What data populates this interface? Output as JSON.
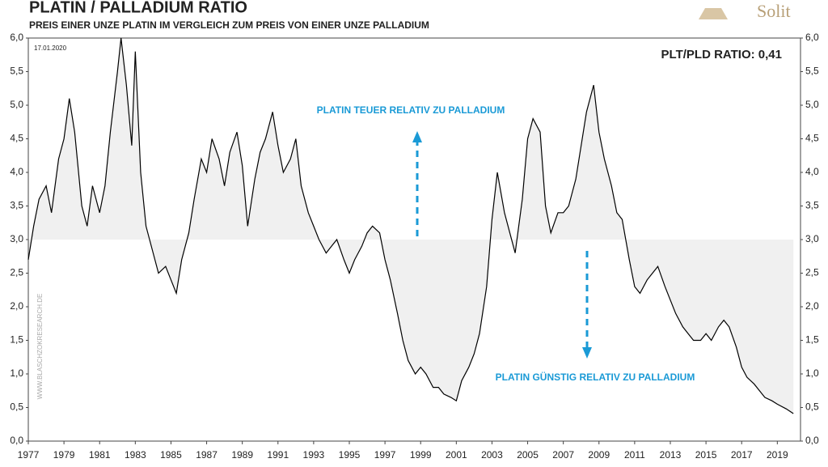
{
  "chart_data": {
    "type": "line",
    "title": "PLATIN / PALLADIUM RATIO",
    "subtitle": "PREIS EINER UNZE  PLATIN IM VERGLEICH ZUM PREIS VON EINER UNZE PALLADIUM",
    "date": "17.01.2020",
    "ratio_label": "PLT/PLD RATIO: 0,41",
    "annotation_up": "PLATIN TEUER RELATIV ZU PALLADIUM",
    "annotation_down": "PLATIN GÜNSTIG RELATIV ZU PALLADIUM",
    "watermark": "WWW.BLASCHZOKRESEARCH.DE",
    "logo": "Solit",
    "color": "#000000",
    "fill_color": "#f0f0f0",
    "fill_baseline": 3,
    "xlim": [
      1977,
      2020.3
    ],
    "xticks": [
      1977,
      1979,
      1981,
      1983,
      1985,
      1987,
      1989,
      1991,
      1993,
      1995,
      1997,
      1999,
      2001,
      2003,
      2005,
      2007,
      2009,
      2011,
      2013,
      2015,
      2017,
      2019
    ],
    "ylim": [
      0,
      6
    ],
    "yticks": [
      {
        "value": 0,
        "label": "0,0"
      },
      {
        "value": 0.5,
        "label": "0,5"
      },
      {
        "value": 1,
        "label": "1,0"
      },
      {
        "value": 1.5,
        "label": "1,5"
      },
      {
        "value": 2,
        "label": "2,0"
      },
      {
        "value": 2.5,
        "label": "2,5"
      },
      {
        "value": 3,
        "label": "3,0"
      },
      {
        "value": 3.5,
        "label": "3,5"
      },
      {
        "value": 4,
        "label": "4,0"
      },
      {
        "value": 4.5,
        "label": "4,5"
      },
      {
        "value": 5,
        "label": "5,0"
      },
      {
        "value": 5.5,
        "label": "5,5"
      },
      {
        "value": 6,
        "label": "6,0"
      }
    ],
    "x": [
      1977.0,
      1977.3,
      1977.6,
      1978.0,
      1978.3,
      1978.7,
      1979.0,
      1979.3,
      1979.6,
      1980.0,
      1980.3,
      1980.6,
      1981.0,
      1981.3,
      1981.6,
      1982.0,
      1982.2,
      1982.5,
      1982.8,
      1983.0,
      1983.3,
      1983.6,
      1984.0,
      1984.3,
      1984.7,
      1985.0,
      1985.3,
      1985.6,
      1986.0,
      1986.3,
      1986.7,
      1987.0,
      1987.3,
      1987.7,
      1988.0,
      1988.3,
      1988.7,
      1989.0,
      1989.3,
      1989.7,
      1990.0,
      1990.3,
      1990.7,
      1991.0,
      1991.3,
      1991.7,
      1992.0,
      1992.3,
      1992.7,
      1993.0,
      1993.3,
      1993.7,
      1994.0,
      1994.3,
      1994.7,
      1995.0,
      1995.3,
      1995.7,
      1996.0,
      1996.3,
      1996.7,
      1997.0,
      1997.3,
      1997.7,
      1998.0,
      1998.3,
      1998.7,
      1999.0,
      1999.3,
      1999.7,
      2000.0,
      2000.3,
      2000.7,
      2001.0,
      2001.3,
      2001.7,
      2002.0,
      2002.3,
      2002.7,
      2003.0,
      2003.3,
      2003.7,
      2004.0,
      2004.3,
      2004.7,
      2005.0,
      2005.3,
      2005.7,
      2006.0,
      2006.3,
      2006.7,
      2007.0,
      2007.3,
      2007.7,
      2008.0,
      2008.3,
      2008.7,
      2009.0,
      2009.3,
      2009.7,
      2010.0,
      2010.3,
      2010.7,
      2011.0,
      2011.3,
      2011.7,
      2012.0,
      2012.3,
      2012.7,
      2013.0,
      2013.3,
      2013.7,
      2014.0,
      2014.3,
      2014.7,
      2015.0,
      2015.3,
      2015.7,
      2016.0,
      2016.3,
      2016.7,
      2017.0,
      2017.3,
      2017.7,
      2018.0,
      2018.3,
      2018.7,
      2019.0,
      2019.5,
      2019.9
    ],
    "values": [
      2.7,
      3.2,
      3.6,
      3.8,
      3.4,
      4.2,
      4.5,
      5.1,
      4.6,
      3.5,
      3.2,
      3.8,
      3.4,
      3.8,
      4.6,
      5.5,
      6.0,
      5.3,
      4.4,
      5.8,
      4.0,
      3.2,
      2.8,
      2.5,
      2.6,
      2.4,
      2.2,
      2.7,
      3.1,
      3.6,
      4.2,
      4.0,
      4.5,
      4.2,
      3.8,
      4.3,
      4.6,
      4.1,
      3.2,
      3.9,
      4.3,
      4.5,
      4.9,
      4.4,
      4.0,
      4.2,
      4.5,
      3.8,
      3.4,
      3.2,
      3.0,
      2.8,
      2.9,
      3.0,
      2.7,
      2.5,
      2.7,
      2.9,
      3.1,
      3.2,
      3.1,
      2.7,
      2.4,
      1.9,
      1.5,
      1.2,
      1.0,
      1.1,
      1.0,
      0.8,
      0.8,
      0.7,
      0.65,
      0.6,
      0.9,
      1.1,
      1.3,
      1.6,
      2.3,
      3.3,
      4.0,
      3.4,
      3.1,
      2.8,
      3.6,
      4.5,
      4.8,
      4.6,
      3.5,
      3.1,
      3.4,
      3.4,
      3.5,
      3.9,
      4.4,
      4.9,
      5.3,
      4.6,
      4.2,
      3.8,
      3.4,
      3.3,
      2.7,
      2.3,
      2.2,
      2.4,
      2.5,
      2.6,
      2.3,
      2.1,
      1.9,
      1.7,
      1.6,
      1.5,
      1.5,
      1.6,
      1.5,
      1.7,
      1.8,
      1.7,
      1.4,
      1.1,
      0.95,
      0.85,
      0.75,
      0.65,
      0.6,
      0.55,
      0.48,
      0.41
    ]
  }
}
